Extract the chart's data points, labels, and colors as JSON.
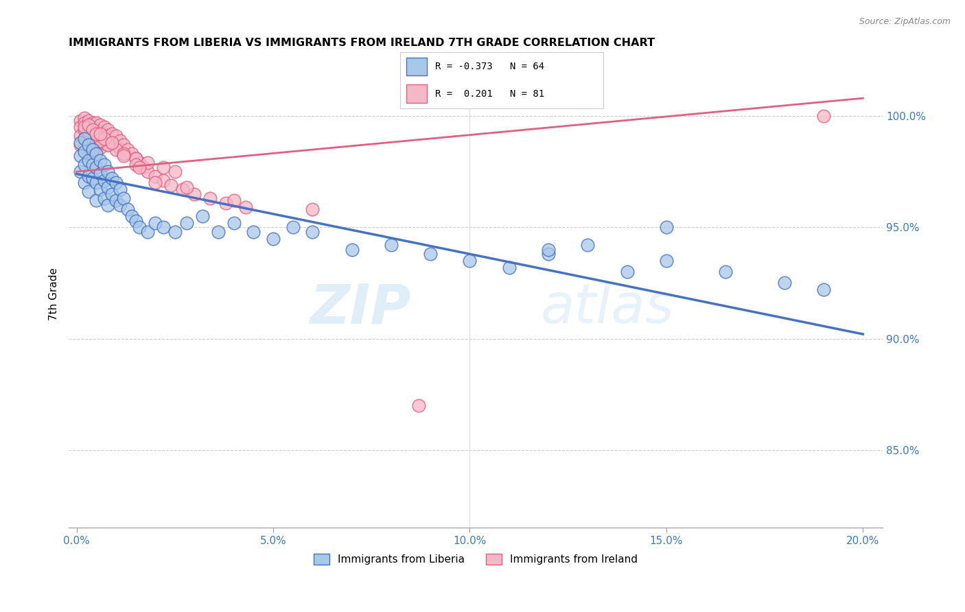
{
  "title": "IMMIGRANTS FROM LIBERIA VS IMMIGRANTS FROM IRELAND 7TH GRADE CORRELATION CHART",
  "source": "Source: ZipAtlas.com",
  "xlabel_ticks": [
    "0.0%",
    "5.0%",
    "10.0%",
    "15.0%",
    "20.0%"
  ],
  "xlabel_vals": [
    0.0,
    0.05,
    0.1,
    0.15,
    0.2
  ],
  "ylabel": "7th Grade",
  "ylabel_ticks": [
    "85.0%",
    "90.0%",
    "95.0%",
    "100.0%"
  ],
  "ylabel_vals": [
    0.85,
    0.9,
    0.95,
    1.0
  ],
  "ylim": [
    0.815,
    1.025
  ],
  "xlim": [
    -0.002,
    0.205
  ],
  "legend_r_liberia": "-0.373",
  "legend_n_liberia": "64",
  "legend_r_ireland": "0.201",
  "legend_n_ireland": "81",
  "color_liberia": "#a8c8e8",
  "color_ireland": "#f4b8c8",
  "color_line_liberia": "#4472c4",
  "color_line_ireland": "#e06080",
  "watermark_zip": "ZIP",
  "watermark_atlas": "atlas",
  "liberia_x": [
    0.001,
    0.001,
    0.001,
    0.002,
    0.002,
    0.002,
    0.002,
    0.003,
    0.003,
    0.003,
    0.003,
    0.004,
    0.004,
    0.004,
    0.005,
    0.005,
    0.005,
    0.005,
    0.006,
    0.006,
    0.006,
    0.007,
    0.007,
    0.007,
    0.008,
    0.008,
    0.008,
    0.009,
    0.009,
    0.01,
    0.01,
    0.011,
    0.011,
    0.012,
    0.013,
    0.014,
    0.015,
    0.016,
    0.018,
    0.02,
    0.022,
    0.025,
    0.028,
    0.032,
    0.036,
    0.04,
    0.045,
    0.05,
    0.055,
    0.06,
    0.07,
    0.08,
    0.09,
    0.1,
    0.11,
    0.12,
    0.13,
    0.14,
    0.15,
    0.165,
    0.18,
    0.19,
    0.15,
    0.12
  ],
  "liberia_y": [
    0.988,
    0.982,
    0.975,
    0.99,
    0.984,
    0.978,
    0.97,
    0.987,
    0.98,
    0.973,
    0.966,
    0.985,
    0.978,
    0.972,
    0.983,
    0.977,
    0.97,
    0.962,
    0.98,
    0.974,
    0.967,
    0.978,
    0.971,
    0.963,
    0.975,
    0.968,
    0.96,
    0.972,
    0.965,
    0.97,
    0.962,
    0.967,
    0.96,
    0.963,
    0.958,
    0.955,
    0.953,
    0.95,
    0.948,
    0.952,
    0.95,
    0.948,
    0.952,
    0.955,
    0.948,
    0.952,
    0.948,
    0.945,
    0.95,
    0.948,
    0.94,
    0.942,
    0.938,
    0.935,
    0.932,
    0.938,
    0.942,
    0.93,
    0.935,
    0.93,
    0.925,
    0.922,
    0.95,
    0.94
  ],
  "ireland_x": [
    0.001,
    0.001,
    0.001,
    0.001,
    0.002,
    0.002,
    0.002,
    0.002,
    0.002,
    0.003,
    0.003,
    0.003,
    0.003,
    0.003,
    0.004,
    0.004,
    0.004,
    0.004,
    0.005,
    0.005,
    0.005,
    0.005,
    0.005,
    0.006,
    0.006,
    0.006,
    0.006,
    0.007,
    0.007,
    0.007,
    0.008,
    0.008,
    0.008,
    0.009,
    0.009,
    0.01,
    0.01,
    0.011,
    0.011,
    0.012,
    0.012,
    0.013,
    0.014,
    0.015,
    0.016,
    0.017,
    0.018,
    0.02,
    0.022,
    0.024,
    0.027,
    0.03,
    0.034,
    0.038,
    0.043,
    0.01,
    0.008,
    0.006,
    0.004,
    0.003,
    0.002,
    0.012,
    0.015,
    0.018,
    0.022,
    0.025,
    0.003,
    0.004,
    0.005,
    0.007,
    0.19,
    0.02,
    0.015,
    0.012,
    0.009,
    0.006,
    0.016,
    0.028,
    0.04,
    0.06,
    0.087
  ],
  "ireland_y": [
    0.998,
    0.995,
    0.991,
    0.987,
    0.999,
    0.997,
    0.994,
    0.99,
    0.986,
    0.998,
    0.995,
    0.992,
    0.988,
    0.984,
    0.997,
    0.994,
    0.99,
    0.986,
    0.997,
    0.994,
    0.991,
    0.988,
    0.984,
    0.996,
    0.993,
    0.99,
    0.986,
    0.995,
    0.992,
    0.988,
    0.994,
    0.991,
    0.987,
    0.992,
    0.988,
    0.991,
    0.987,
    0.989,
    0.985,
    0.987,
    0.983,
    0.985,
    0.983,
    0.981,
    0.979,
    0.977,
    0.975,
    0.973,
    0.971,
    0.969,
    0.967,
    0.965,
    0.963,
    0.961,
    0.959,
    0.985,
    0.987,
    0.989,
    0.991,
    0.993,
    0.995,
    0.983,
    0.981,
    0.979,
    0.977,
    0.975,
    0.996,
    0.994,
    0.992,
    0.99,
    1.0,
    0.97,
    0.978,
    0.982,
    0.988,
    0.992,
    0.977,
    0.968,
    0.962,
    0.958,
    0.87
  ]
}
